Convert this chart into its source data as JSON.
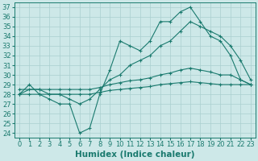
{
  "xlabel": "Humidex (Indice chaleur)",
  "xlim": [
    -0.5,
    23.5
  ],
  "ylim": [
    23.5,
    37.5
  ],
  "xticks": [
    0,
    1,
    2,
    3,
    4,
    5,
    6,
    7,
    8,
    9,
    10,
    11,
    12,
    13,
    14,
    15,
    16,
    17,
    18,
    19,
    20,
    21,
    22,
    23
  ],
  "yticks": [
    24,
    25,
    26,
    27,
    28,
    29,
    30,
    31,
    32,
    33,
    34,
    35,
    36,
    37
  ],
  "bg_color": "#cde8e8",
  "line_color": "#1a7a6e",
  "gridcolor": "#aacfcf",
  "tick_fontsize": 6,
  "xlabel_fontsize": 7.5,
  "line1_x": [
    0,
    1,
    2,
    3,
    4,
    5,
    6,
    7,
    8,
    9,
    10,
    11,
    12,
    13,
    14,
    15,
    16,
    17,
    18,
    19,
    20,
    21,
    22,
    23
  ],
  "line1_y": [
    28.0,
    29.0,
    28.0,
    27.5,
    27.0,
    27.0,
    24.0,
    24.5,
    28.0,
    30.5,
    33.5,
    33.0,
    32.5,
    33.5,
    35.5,
    35.5,
    36.5,
    37.0,
    35.5,
    34.0,
    33.5,
    32.0,
    29.5,
    29.0
  ],
  "line2_x": [
    0,
    2,
    3,
    4,
    5,
    6,
    7,
    8,
    9,
    10,
    11,
    12,
    13,
    14,
    15,
    16,
    17,
    18,
    19,
    20,
    21,
    22,
    23
  ],
  "line2_y": [
    28.5,
    28.5,
    28.0,
    28.0,
    27.5,
    27.0,
    27.5,
    28.5,
    29.5,
    30.0,
    31.0,
    31.5,
    32.0,
    33.0,
    33.5,
    34.5,
    35.5,
    35.0,
    34.5,
    34.0,
    33.0,
    31.5,
    29.5
  ],
  "line3_x": [
    0,
    1,
    2,
    3,
    4,
    5,
    6,
    7,
    8,
    9,
    10,
    11,
    12,
    13,
    14,
    15,
    16,
    17,
    18,
    19,
    20,
    21,
    22,
    23
  ],
  "line3_y": [
    28.0,
    28.5,
    28.5,
    28.5,
    28.5,
    28.5,
    28.5,
    28.5,
    28.7,
    29.0,
    29.2,
    29.4,
    29.5,
    29.7,
    30.0,
    30.2,
    30.5,
    30.7,
    30.5,
    30.3,
    30.0,
    30.0,
    29.5,
    29.0
  ],
  "line4_x": [
    0,
    1,
    2,
    3,
    4,
    5,
    6,
    7,
    8,
    9,
    10,
    11,
    12,
    13,
    14,
    15,
    16,
    17,
    18,
    19,
    20,
    21,
    22,
    23
  ],
  "line4_y": [
    28.0,
    28.0,
    28.0,
    28.0,
    28.0,
    28.0,
    28.0,
    28.0,
    28.2,
    28.4,
    28.5,
    28.6,
    28.7,
    28.8,
    29.0,
    29.1,
    29.2,
    29.3,
    29.2,
    29.1,
    29.0,
    29.0,
    29.0,
    29.0
  ]
}
